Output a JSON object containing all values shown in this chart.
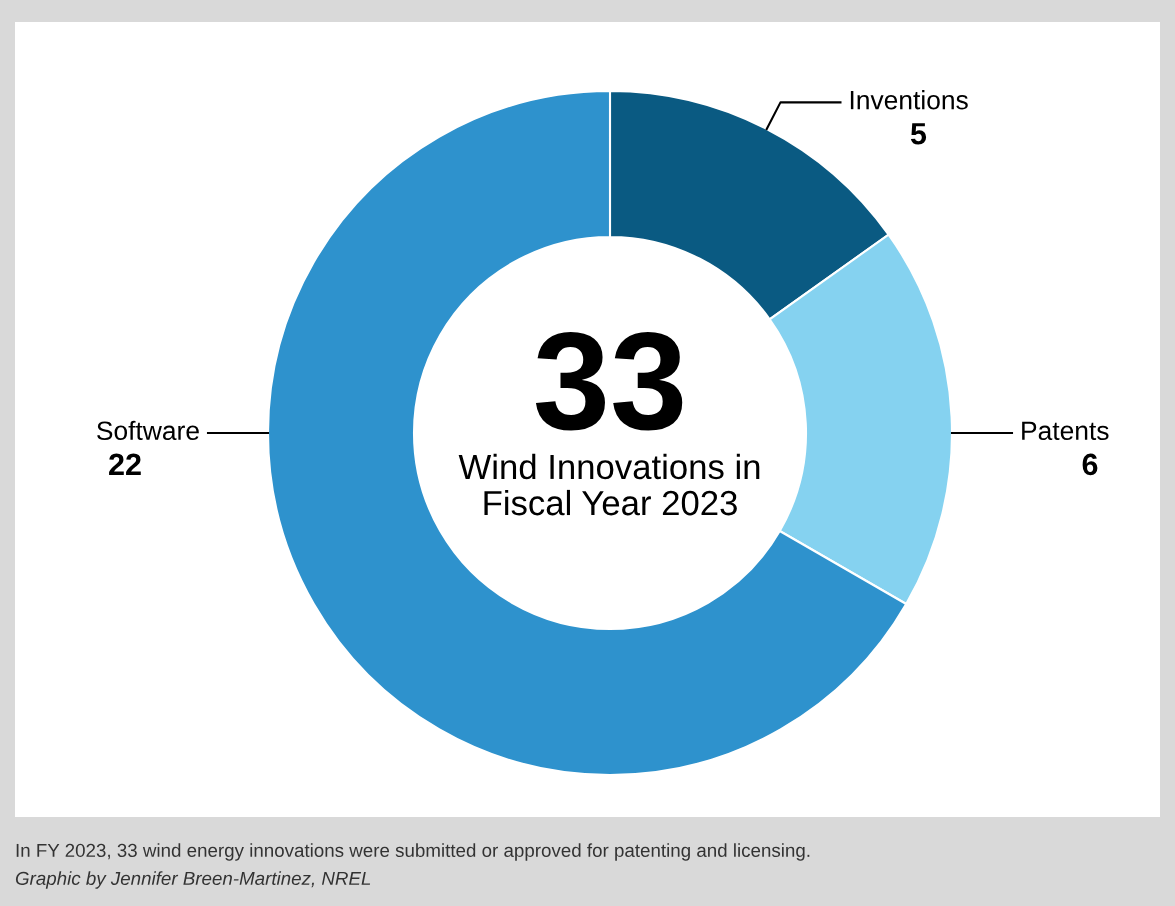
{
  "chart_data": {
    "type": "donut",
    "title": "33",
    "subtitle": "Wind Innovations in Fiscal Year 2023",
    "categories": [
      "Inventions",
      "Patents",
      "Software"
    ],
    "values": [
      5,
      6,
      22
    ],
    "colors": [
      "#0a5a82",
      "#85d2f0",
      "#2e92cd"
    ],
    "data_labels": true,
    "annotations": [
      "In FY 2023, 33 wind energy innovations were submitted or approved for patenting and licensing.",
      "Graphic by Jennifer Breen-Martinez, NREL"
    ]
  }
}
